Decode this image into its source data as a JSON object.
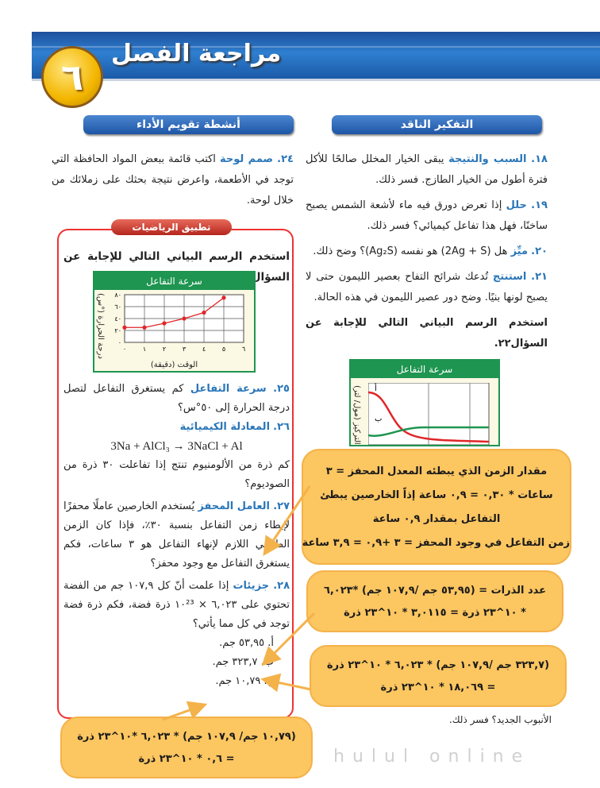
{
  "header": {
    "chapter_number": "٦",
    "title": "مراجعة الفصل"
  },
  "sections": {
    "critical_thinking": "التفكير الناقد",
    "performance": "أنشطة تقويم الأداء",
    "math_badge": "تطبيق الرياضيات"
  },
  "right_questions": [
    {
      "num": "١٨.",
      "kw": "السبب والنتيجة",
      "text": "يبقى الخيار المخلل صالحًا للأكل فترة أطول من الخيار الطازج. فسر ذلك."
    },
    {
      "num": "١٩.",
      "kw": "حلل",
      "text": "إذا تعرض دورق فيه ماء لأشعة الشمس يصبح ساخنًا، فهل هذا تفاعل كيميائي؟ فسر ذلك."
    },
    {
      "num": "٢٠.",
      "kw": "ميِّز",
      "text": "هل (2Ag + S) هو نفسه (Ag₂S)؟ وضح ذلك."
    },
    {
      "num": "٢١.",
      "kw": "استنتج",
      "text": "تُدعك شرائح التفاح بعصير الليمون حتى لا يصبح لونها بنيًا. وضح دور عصير الليمون في هذه الحالة."
    }
  ],
  "right_prompt": "استخدم الرسم البياني التالي للإجابة عن السؤال٢٢.",
  "right_tail": "الأنبوب الجديد؟ فسر ذلك.",
  "graph2": {
    "title": "سرعة التفاعل",
    "ylabel": "التركيز (مول/ لتر)",
    "label_a": "أ",
    "label_b": "ب",
    "colors": {
      "a": "#e0262a",
      "b": "#1e9550"
    }
  },
  "left_q24": {
    "num": "٢٤.",
    "kw": "صمم لوحة",
    "text": "اكتب قائمة ببعض المواد الحافظة التي توجد في الأطعمة، واعرض نتيجة بحثك على زملائك من خلال لوحة."
  },
  "left_prompt": "استخدم الرسم البياني التالي للإجابة عن السؤال٢٥.",
  "chart_data": {
    "type": "line",
    "title": "سرعة التفاعل",
    "xlabel": "الوقت (دقيقة)",
    "ylabel": "درجة الحرارة (°س)",
    "x": [
      0,
      1,
      2,
      3,
      4,
      5
    ],
    "values": [
      25,
      25,
      32,
      40,
      50,
      75
    ],
    "x_ticks": [
      "٠",
      "١",
      "٢",
      "٣",
      "٤",
      "٥",
      "٦"
    ],
    "y_ticks": [
      "٠",
      "٢٠",
      "٤٠",
      "٦٠",
      "٨٠"
    ],
    "xlim": [
      0,
      6
    ],
    "ylim": [
      0,
      80
    ],
    "grid": true,
    "color": "#e0262a"
  },
  "left_questions": {
    "q25": {
      "num": "٢٥.",
      "kw": "سرعة التفاعل",
      "text": "كم يستغرق التفاعل لتصل درجة الحرارة إلى ٥٠°س؟"
    },
    "q26": {
      "num": "٢٦.",
      "kw": "المعادلة الكيميائية",
      "equation": "3Na + AlCl₃ → 3NaCl + Al",
      "text": "كم ذرة من الألومنيوم تنتج إذا تفاعلت ٣٠ ذرة من الصوديوم؟"
    },
    "q27": {
      "num": "٢٧.",
      "kw": "العامل المحفز",
      "text": "يُستخدم الخارصين عاملًا محفزًا لإبطاء زمن التفاعل بنسبة ٣٠٪، فإذا كان الزمن الطبيعي اللازم لإنهاء التفاعل هو ٣ ساعات، فكم يستغرق التفاعل مع وجود محفز؟"
    },
    "q28": {
      "num": "٢٨.",
      "kw": "جزيئات",
      "text": "إذا علمت أنّ كل ١٠٧,٩ جم من الفضة تحتوي على ٦,٠٢٣ × ١٠²³ ذرة فضة، فكم ذرة فضة توجد في كل مما يأتي؟",
      "items": [
        "أ. ٥٣,٩٥ جم.",
        "ب. ٣٢٣,٧ جم.",
        "ج. ١٠,٧٩ جم."
      ]
    }
  },
  "callouts": [
    {
      "lines": [
        "مقدار الزمن الذي يبطئه المعدل المحفز = ٣",
        "ساعات * ٠,٣٠ = ٠,٩ ساعة إذاً الخارصين يبطئ",
        "التفاعل بمقدار ٠,٩ ساعة",
        "زمن التفاعل في وجود المحفز = ٣ +٠,٩ = ٣,٩ ساعة"
      ]
    },
    {
      "lines": [
        "عدد الذرات = (٥٣,٩٥ جم /١٠٧,٩ جم) *٦,٠٢٣",
        "* ١٠^٢٣ ذرة = ٣,٠١١٥ * ١٠^٢٣ ذرة"
      ]
    },
    {
      "lines": [
        "(٣٢٣,٧ جم /١٠٧,٩ جم) * ٦,٠٢٣ * ١٠^٢٣ ذرة",
        "= ١٨,٠٦٩ * ١٠^٢٣ ذرة"
      ]
    },
    {
      "lines": [
        "(١٠,٧٩ جم/ ١٠٧,٩ جم) * ٦,٠٢٣ *١٠^٢٣ ذرة",
        "= ٠,٦ * ١٠^٢٣ ذرة"
      ]
    }
  ],
  "watermark": {
    "text": "hulul online",
    "accent": "#f4b24a"
  }
}
